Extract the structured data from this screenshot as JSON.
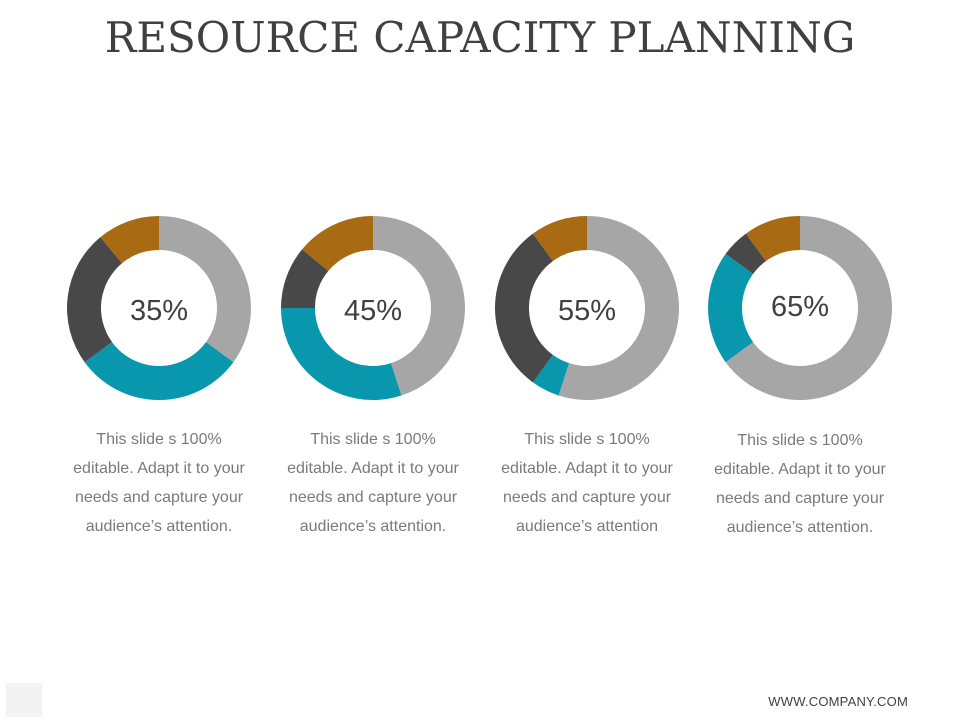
{
  "slide": {
    "title": "RESOURCE CAPACITY PLANNING",
    "footer": "WWW.COMPANY.COM"
  },
  "colors": {
    "gold": "#a86a12",
    "dark": "#484848",
    "teal": "#0897ad",
    "gray": "#a6a6a6"
  },
  "chart_data": [
    {
      "type": "donut",
      "label": "35%",
      "caption": [
        "This slide s 100%",
        "editable. Adapt it to your",
        "needs and capture your",
        "audience’s attention."
      ],
      "segments": [
        {
          "name": "gray",
          "value": 35
        },
        {
          "name": "teal",
          "value": 30
        },
        {
          "name": "dark",
          "value": 24
        },
        {
          "name": "gold",
          "value": 11
        }
      ]
    },
    {
      "type": "donut",
      "label": "45%",
      "caption": [
        "This slide s 100%",
        "editable. Adapt it to your",
        "needs and capture your",
        "audience’s attention."
      ],
      "segments": [
        {
          "name": "gray",
          "value": 45
        },
        {
          "name": "teal",
          "value": 30
        },
        {
          "name": "dark",
          "value": 11
        },
        {
          "name": "gold",
          "value": 14
        }
      ]
    },
    {
      "type": "donut",
      "label": "55%",
      "caption": [
        "This slide s 100%",
        "editable. Adapt it to your",
        "needs and capture your",
        "audience’s attention"
      ],
      "segments": [
        {
          "name": "gray",
          "value": 55
        },
        {
          "name": "teal",
          "value": 5
        },
        {
          "name": "dark",
          "value": 30
        },
        {
          "name": "gold",
          "value": 10
        }
      ]
    },
    {
      "type": "donut",
      "label": "65%",
      "caption": [
        "This slide s 100%",
        "editable. Adapt it to your",
        "needs and capture your",
        "audience’s attention."
      ],
      "segments": [
        {
          "name": "gray",
          "value": 65
        },
        {
          "name": "teal",
          "value": 20
        },
        {
          "name": "dark",
          "value": 5
        },
        {
          "name": "gold",
          "value": 10
        }
      ]
    }
  ]
}
